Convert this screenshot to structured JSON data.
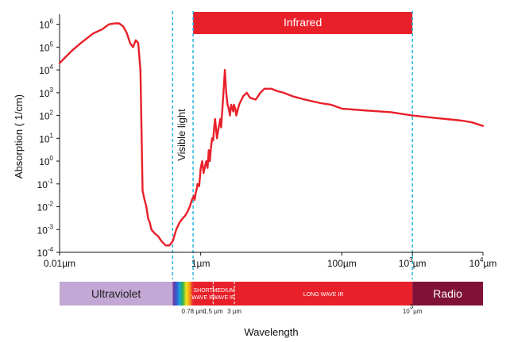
{
  "chart_data": {
    "type": "line",
    "xscale": "log",
    "yscale": "log",
    "xlim": [
      0.01,
      10000
    ],
    "ylim": [
      0.0001,
      2000000
    ],
    "xlabel": "Wavelength",
    "ylabel": "Absorption ( 1/cm)",
    "x_ticks": [
      {
        "base": "0.01",
        "exp": "",
        "unit": "µm"
      },
      {
        "base": "1",
        "exp": "",
        "unit": "µm"
      },
      {
        "base": "100",
        "exp": "",
        "unit": "µm"
      },
      {
        "base": "10",
        "exp": "3",
        "unit": "µm"
      },
      {
        "base": "10",
        "exp": "4",
        "unit": "µm"
      }
    ],
    "y_ticks": [
      {
        "base": "10",
        "exp": "6"
      },
      {
        "base": "10",
        "exp": "5"
      },
      {
        "base": "10",
        "exp": "4"
      },
      {
        "base": "10",
        "exp": "3"
      },
      {
        "base": "10",
        "exp": "2"
      },
      {
        "base": "10",
        "exp": "1"
      },
      {
        "base": "10",
        "exp": "0"
      },
      {
        "base": "10",
        "exp": "-1"
      },
      {
        "base": "10",
        "exp": "-2"
      },
      {
        "base": "10",
        "exp": "-3"
      },
      {
        "base": "10",
        "exp": "-4"
      }
    ],
    "series": [
      {
        "color": "#e8202a",
        "x": [
          0.01,
          0.015,
          0.02,
          0.03,
          0.04,
          0.05,
          0.06,
          0.07,
          0.08,
          0.09,
          0.1,
          0.11,
          0.12,
          0.13,
          0.14,
          0.15,
          0.16,
          0.17,
          0.18,
          0.19,
          0.2,
          0.22,
          0.25,
          0.28,
          0.32,
          0.36,
          0.4,
          0.45,
          0.5,
          0.55,
          0.6,
          0.65,
          0.7,
          0.75,
          0.8,
          0.82,
          0.85,
          0.88,
          0.9,
          0.95,
          1.0,
          1.05,
          1.1,
          1.15,
          1.2,
          1.25,
          1.3,
          1.35,
          1.4,
          1.45,
          1.5,
          1.55,
          1.6,
          1.7,
          1.8,
          1.9,
          1.95,
          2.0,
          2.1,
          2.2,
          2.3,
          2.4,
          2.5,
          2.6,
          2.7,
          2.8,
          2.9,
          2.95,
          3.0,
          3.1,
          3.2,
          3.5,
          4.0,
          4.5,
          5.0,
          6.0,
          6.5,
          7.0,
          8.0,
          10,
          12,
          15,
          20,
          30,
          50,
          70,
          100,
          200,
          500,
          1000,
          2000,
          3000,
          5000,
          7000,
          10000
        ],
        "y": [
          20000,
          70000,
          150000,
          400000,
          600000,
          1000000,
          1100000,
          1100000,
          800000,
          400000,
          150000,
          100000,
          200000,
          150000,
          10000,
          0.05,
          0.02,
          0.01,
          0.003,
          0.002,
          0.001,
          0.0007,
          0.0005,
          0.0003,
          0.0002,
          0.0002,
          0.0003,
          0.001,
          0.002,
          0.003,
          0.004,
          0.006,
          0.01,
          0.02,
          0.03,
          0.02,
          0.04,
          0.06,
          0.1,
          0.08,
          0.5,
          1,
          0.3,
          0.6,
          1,
          0.5,
          3,
          1,
          4,
          10,
          8,
          30,
          70,
          10,
          30,
          70,
          30,
          100,
          1000,
          10000,
          1000,
          300,
          200,
          100,
          300,
          200,
          150,
          300,
          250,
          200,
          100,
          300,
          700,
          1000,
          600,
          500,
          700,
          1000,
          1500,
          1500,
          1200,
          1000,
          700,
          500,
          350,
          300,
          200,
          170,
          140,
          100,
          80,
          70,
          60,
          50,
          35
        ]
      }
    ],
    "vlines": [
      0.4,
      0.78,
      1000
    ],
    "annotations": {
      "visible_light": "Visible light",
      "infrared": "Infrared"
    },
    "infrared_range": [
      0.78,
      1000
    ],
    "spectrum_bands": [
      {
        "label": "Ultraviolet",
        "from": 0.01,
        "to": 0.4,
        "color": "#c3a7d4",
        "style": "large",
        "text_color": "#222222"
      },
      {
        "label": "",
        "from": 0.4,
        "to": 0.78,
        "color": "rainbow",
        "style": "none"
      },
      {
        "label_lines": [
          "SHORT",
          "WAVE IR"
        ],
        "from": 0.78,
        "to": 1.5,
        "color": "#e8202a",
        "style": "small"
      },
      {
        "label_lines": [
          "MEDIUM",
          "WAVE IR"
        ],
        "from": 1.5,
        "to": 3,
        "color": "#e8202a",
        "style": "small"
      },
      {
        "label_lines": [
          "LONG WAVE IR"
        ],
        "from": 3,
        "to": 1000,
        "color": "#e8202a",
        "style": "small"
      },
      {
        "label": "Radio",
        "from": 1000,
        "to": 10000,
        "color": "#7e1135",
        "style": "large",
        "text_color": "#ffffff"
      }
    ],
    "band_markers": [
      {
        "value": 0.78,
        "label": "0.78 µm"
      },
      {
        "value": 1.5,
        "label": "1.5 µm"
      },
      {
        "value": 3,
        "label": "3 µm"
      },
      {
        "value": 1000,
        "label_base": "10",
        "label_exp": "3",
        "label_unit": "µm"
      }
    ]
  }
}
